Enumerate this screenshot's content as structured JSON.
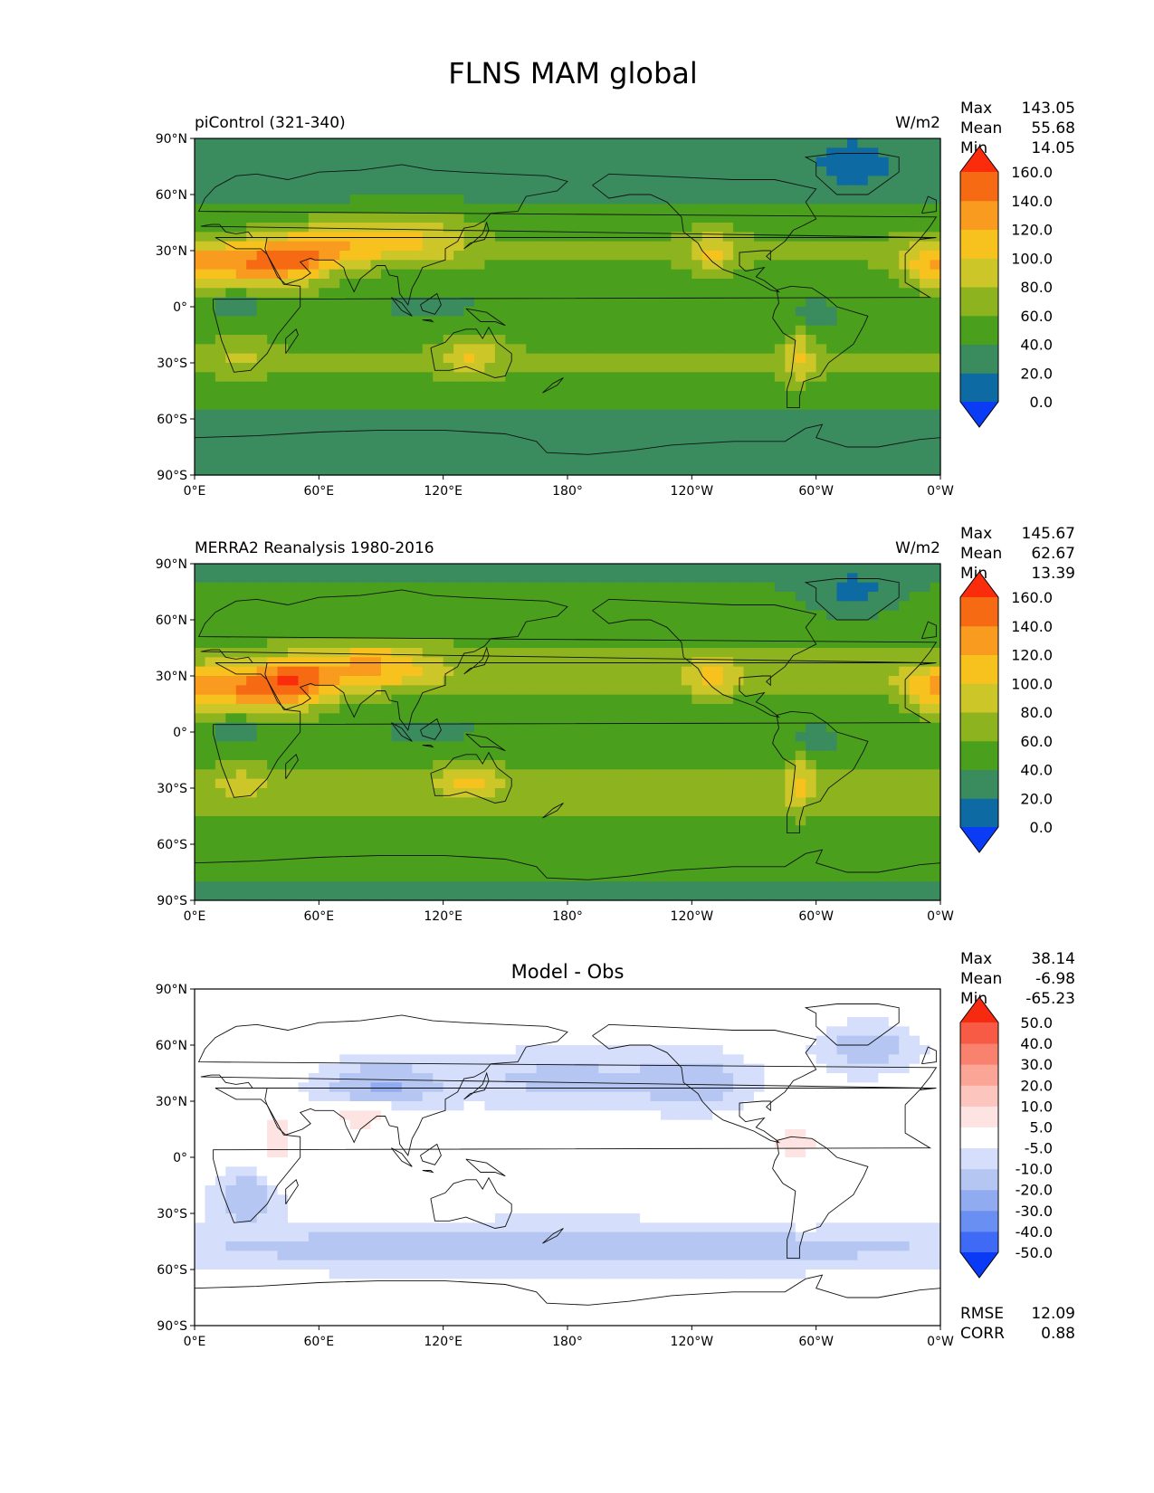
{
  "figure": {
    "title": "FLNS MAM global"
  },
  "chart_data": [
    {
      "type": "heatmap",
      "kind": "filled-contour map",
      "title_left": "piControl (321-340)",
      "title_center": "",
      "units": "W/m2",
      "x_ticks": [
        "0°E",
        "60°E",
        "120°E",
        "180°",
        "120°W",
        "60°W",
        "0°W"
      ],
      "y_ticks": [
        "90°N",
        "60°N",
        "30°N",
        "0°",
        "30°S",
        "60°S",
        "90°S"
      ],
      "xlim_deg_east": [
        0,
        360
      ],
      "ylim_deg": [
        -90,
        90
      ],
      "stats": [
        {
          "label": "Max",
          "value": "143.05"
        },
        {
          "label": "Mean",
          "value": "55.68"
        },
        {
          "label": "Min",
          "value": "14.05"
        }
      ],
      "colorbar": {
        "levels": [
          0,
          20,
          40,
          60,
          80,
          100,
          120,
          140,
          160
        ],
        "labels": [
          "0.0",
          "20.0",
          "40.0",
          "60.0",
          "80.0",
          "100.0",
          "120.0",
          "140.0",
          "160.0"
        ],
        "colors": [
          "#0a3cf5",
          "#0e6aa3",
          "#3a8c5f",
          "#4aa01c",
          "#8db41e",
          "#ccc628",
          "#f7c21e",
          "#f99b1e",
          "#f56a12",
          "#fb2c0c"
        ],
        "extend": "both"
      },
      "footer_stats": []
    },
    {
      "type": "heatmap",
      "kind": "filled-contour map",
      "title_left": "MERRA2 Reanalysis 1980-2016",
      "title_center": "",
      "units": "W/m2",
      "x_ticks": [
        "0°E",
        "60°E",
        "120°E",
        "180°",
        "120°W",
        "60°W",
        "0°W"
      ],
      "y_ticks": [
        "90°N",
        "60°N",
        "30°N",
        "0°",
        "30°S",
        "60°S",
        "90°S"
      ],
      "xlim_deg_east": [
        0,
        360
      ],
      "ylim_deg": [
        -90,
        90
      ],
      "stats": [
        {
          "label": "Max",
          "value": "145.67"
        },
        {
          "label": "Mean",
          "value": "62.67"
        },
        {
          "label": "Min",
          "value": "13.39"
        }
      ],
      "colorbar": {
        "levels": [
          0,
          20,
          40,
          60,
          80,
          100,
          120,
          140,
          160
        ],
        "labels": [
          "0.0",
          "20.0",
          "40.0",
          "60.0",
          "80.0",
          "100.0",
          "120.0",
          "140.0",
          "160.0"
        ],
        "colors": [
          "#0a3cf5",
          "#0e6aa3",
          "#3a8c5f",
          "#4aa01c",
          "#8db41e",
          "#ccc628",
          "#f7c21e",
          "#f99b1e",
          "#f56a12",
          "#fb2c0c"
        ],
        "extend": "both"
      },
      "footer_stats": []
    },
    {
      "type": "heatmap",
      "kind": "filled-contour map",
      "title_left": "",
      "title_center": "Model - Obs",
      "units": "",
      "x_ticks": [
        "0°E",
        "60°E",
        "120°E",
        "180°",
        "120°W",
        "60°W",
        "0°W"
      ],
      "y_ticks": [
        "90°N",
        "60°N",
        "30°N",
        "0°",
        "30°S",
        "60°S",
        "90°S"
      ],
      "xlim_deg_east": [
        0,
        360
      ],
      "ylim_deg": [
        -90,
        90
      ],
      "stats": [
        {
          "label": "Max",
          "value": "38.14"
        },
        {
          "label": "Mean",
          "value": "-6.98"
        },
        {
          "label": "Min",
          "value": "-65.23"
        }
      ],
      "colorbar": {
        "levels": [
          -50,
          -40,
          -30,
          -20,
          -10,
          -5,
          5,
          10,
          20,
          30,
          40,
          50
        ],
        "labels": [
          "-50.0",
          "-40.0",
          "-30.0",
          "-20.0",
          "-10.0",
          "-5.0",
          "5.0",
          "10.0",
          "20.0",
          "30.0",
          "40.0",
          "50.0"
        ],
        "colors": [
          "#0b3af7",
          "#3e6af5",
          "#6a8ff3",
          "#90abf0",
          "#b5c6f2",
          "#d5defa",
          "#ffffff",
          "#fde3e1",
          "#fcc5bd",
          "#fba596",
          "#f9826f",
          "#f85b45",
          "#f52a10"
        ],
        "extend": "both"
      },
      "footer_stats": [
        {
          "label": "RMSE",
          "value": "12.09"
        },
        {
          "label": "CORR",
          "value": "0.88"
        }
      ]
    }
  ]
}
